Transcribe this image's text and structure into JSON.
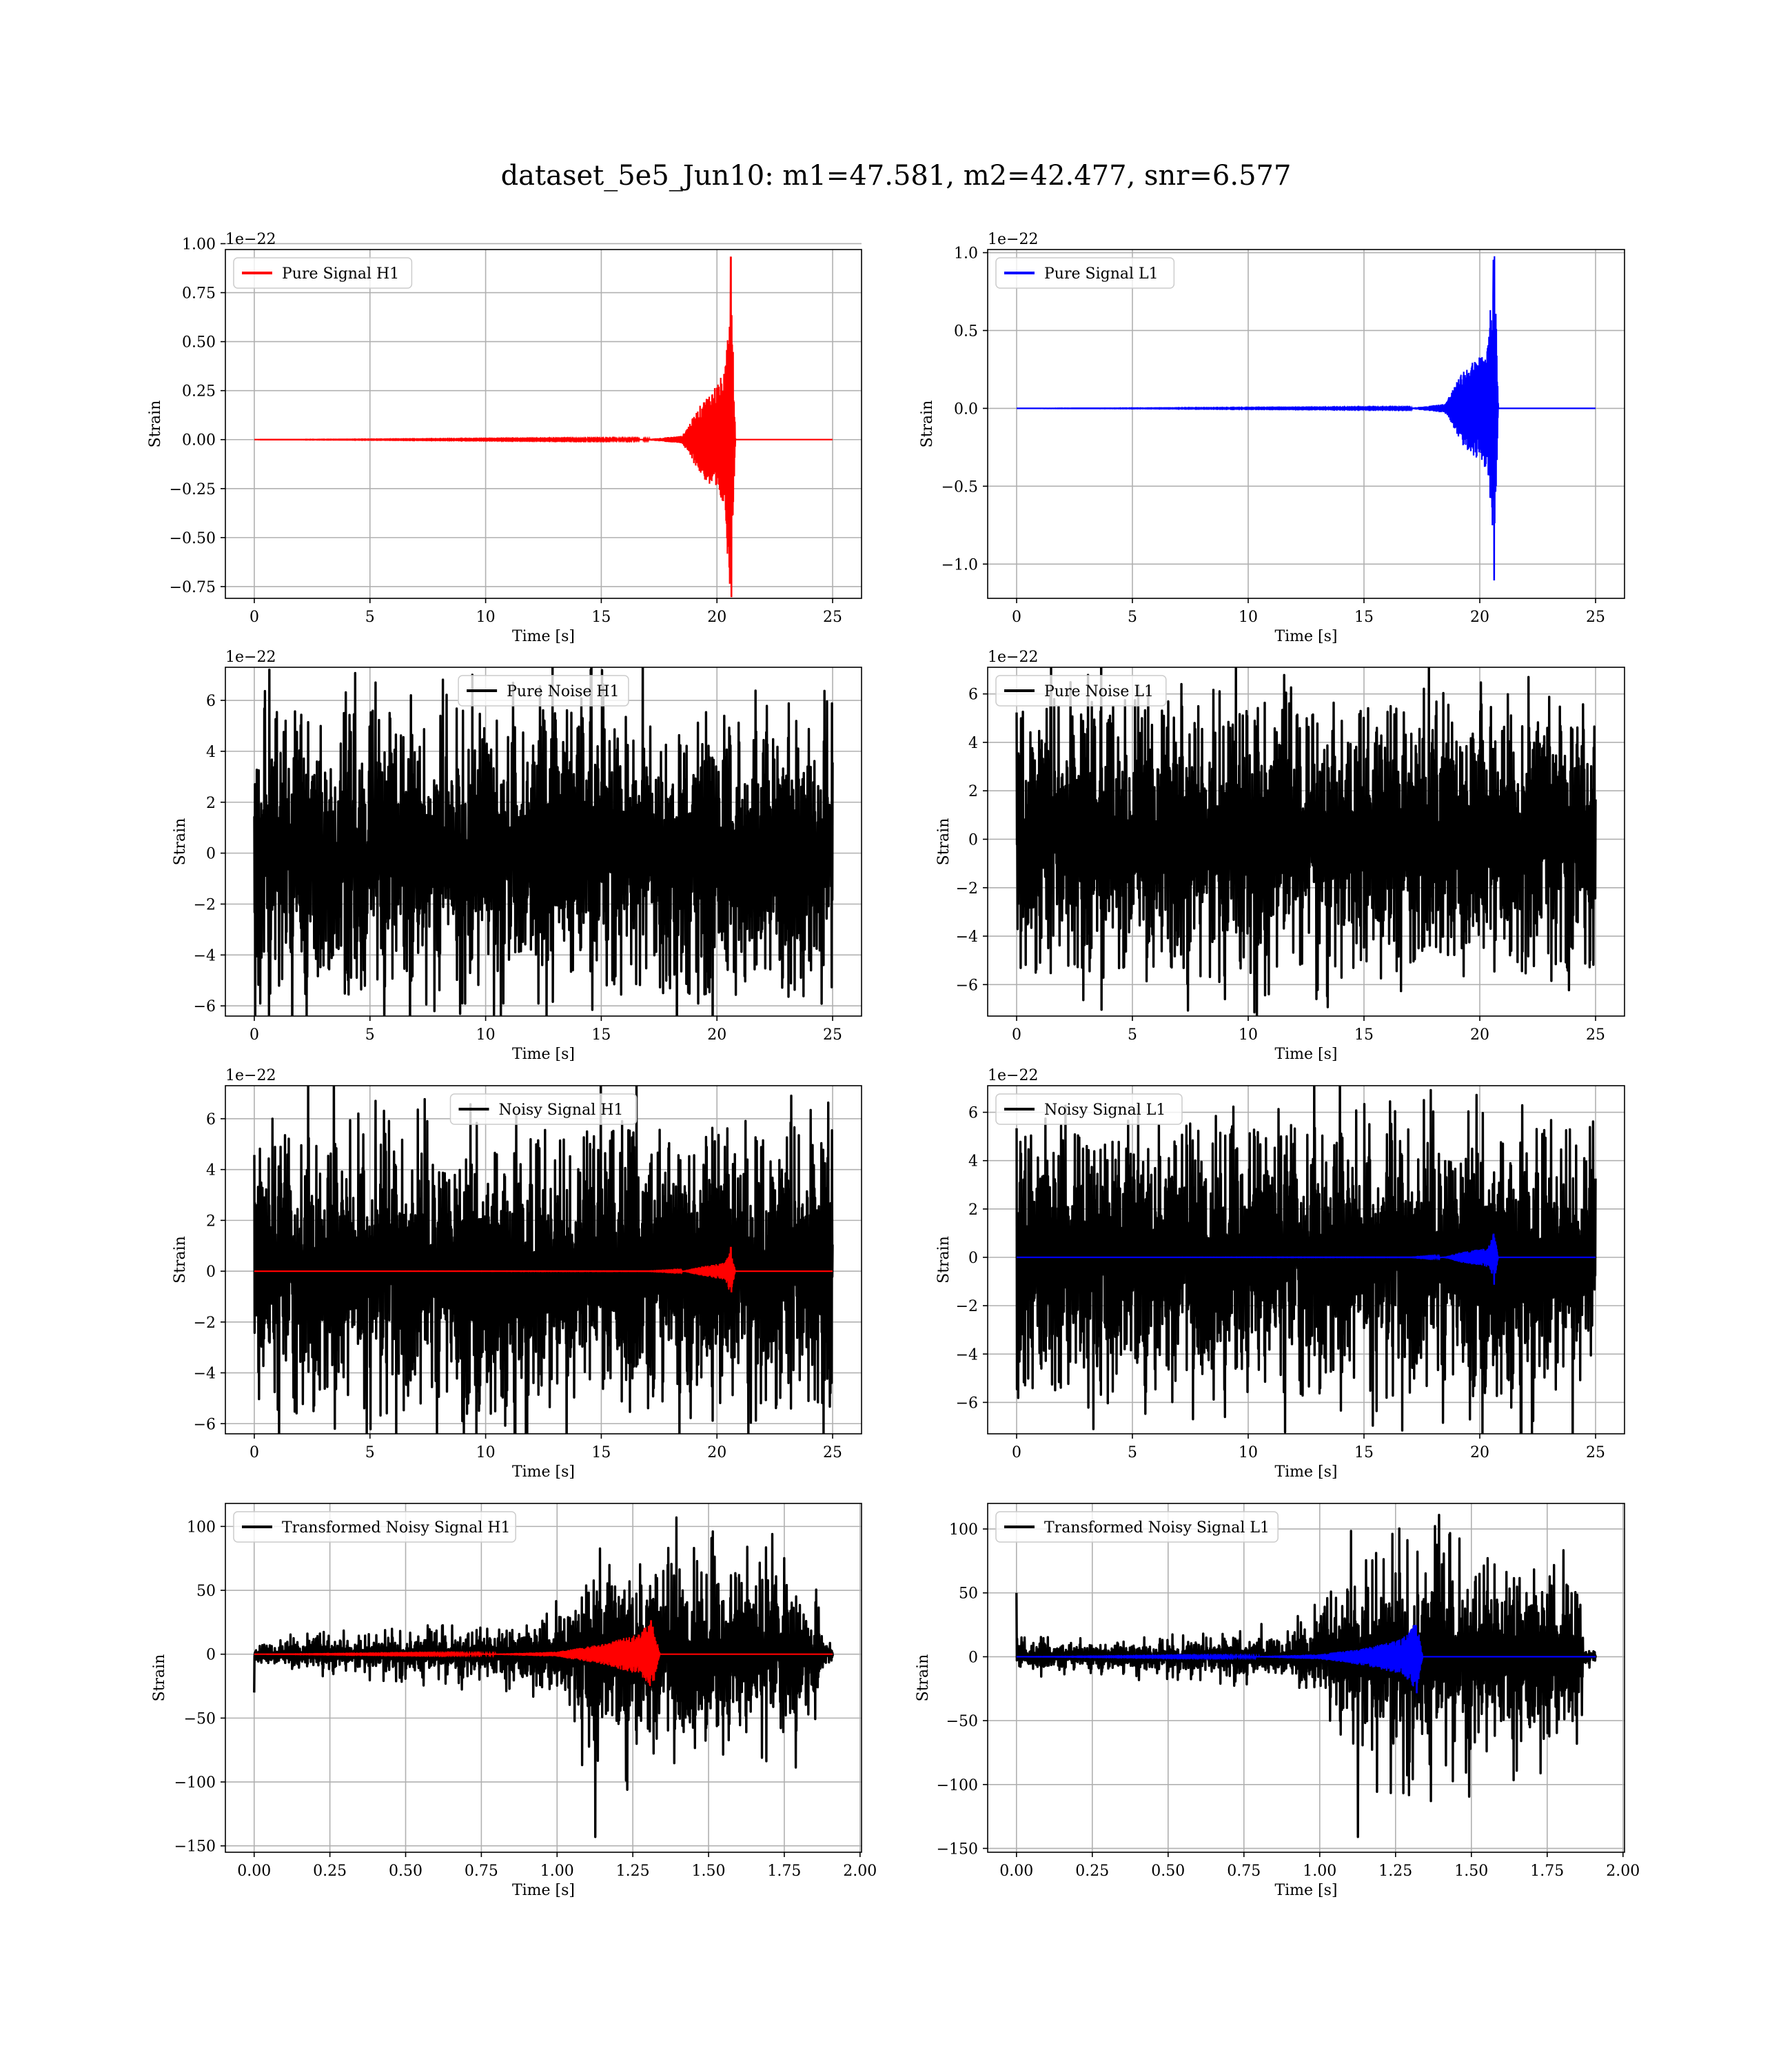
{
  "figure": {
    "title": "dataset_5e5_Jun10: m1=47.581, m2=42.477, snr=6.577"
  },
  "colors": {
    "h1_signal": "#ff0000",
    "l1_signal": "#0000ff",
    "noise": "#000000",
    "grid": "#b0b0b0"
  },
  "chart_data": [
    {
      "id": "pure-signal-h1",
      "type": "line",
      "legend": [
        "Pure Signal H1"
      ],
      "legend_loc": "upper-left",
      "xlabel": "Time [s]",
      "ylabel": "Strain",
      "offset_text": "1e−22",
      "xlim": [
        -1.25,
        26.25
      ],
      "ylim": [
        -0.81,
        0.97
      ],
      "xticks": [
        0,
        5,
        10,
        15,
        20,
        25
      ],
      "xtick_labels": [
        "0",
        "5",
        "10",
        "15",
        "20",
        "25"
      ],
      "yticks": [
        -0.75,
        -0.5,
        -0.25,
        0,
        0.25,
        0.5,
        0.75,
        1.0
      ],
      "ytick_labels": [
        "−0.75",
        "−0.50",
        "−0.25",
        "0.00",
        "0.25",
        "0.50",
        "0.75",
        "1.00"
      ],
      "grid": true,
      "series": [
        {
          "name": "Pure Signal H1",
          "kind": "chirp",
          "color": "red",
          "x_range": [
            0,
            25
          ],
          "envelope_points": [
            [
              0,
              0
            ],
            [
              17,
              0.003
            ],
            [
              18.5,
              0.02
            ],
            [
              19.3,
              0.18
            ],
            [
              20.0,
              0.29
            ],
            [
              20.35,
              0.35
            ],
            [
              20.6,
              0.93
            ],
            [
              20.62,
              -0.8
            ],
            [
              20.8,
              0
            ]
          ]
        }
      ]
    },
    {
      "id": "pure-signal-l1",
      "type": "line",
      "legend": [
        "Pure Signal L1"
      ],
      "legend_loc": "upper-left",
      "xlabel": "Time [s]",
      "ylabel": "Strain",
      "offset_text": "1e−22",
      "xlim": [
        -1.25,
        26.25
      ],
      "ylim": [
        -1.22,
        1.02
      ],
      "xticks": [
        0,
        5,
        10,
        15,
        20,
        25
      ],
      "xtick_labels": [
        "0",
        "5",
        "10",
        "15",
        "20",
        "25"
      ],
      "yticks": [
        -1.0,
        -0.5,
        0,
        0.5,
        1.0
      ],
      "ytick_labels": [
        "−1.0",
        "−0.5",
        "0.0",
        "0.5",
        "1.0"
      ],
      "grid": true,
      "series": [
        {
          "name": "Pure Signal L1",
          "kind": "chirp",
          "color": "blue",
          "x_range": [
            0,
            25
          ],
          "envelope_points": [
            [
              0,
              0
            ],
            [
              17,
              0.003
            ],
            [
              18.5,
              0.03
            ],
            [
              19.3,
              0.25
            ],
            [
              20.0,
              0.34
            ],
            [
              20.35,
              0.4
            ],
            [
              20.6,
              0.95
            ],
            [
              20.62,
              -1.1
            ],
            [
              20.8,
              0
            ]
          ]
        }
      ]
    },
    {
      "id": "pure-noise-h1",
      "type": "line",
      "legend": [
        "Pure Noise H1"
      ],
      "legend_loc": "upper-center",
      "xlabel": "Time [s]",
      "ylabel": "Strain",
      "offset_text": "1e−22",
      "xlim": [
        -1.25,
        26.25
      ],
      "ylim": [
        -6.4,
        7.3
      ],
      "xticks": [
        0,
        5,
        10,
        15,
        20,
        25
      ],
      "xtick_labels": [
        "0",
        "5",
        "10",
        "15",
        "20",
        "25"
      ],
      "yticks": [
        -6,
        -4,
        -2,
        0,
        2,
        4,
        6
      ],
      "ytick_labels": [
        "−6",
        "−4",
        "−2",
        "0",
        "2",
        "4",
        "6"
      ],
      "grid": true,
      "series": [
        {
          "name": "Pure Noise H1",
          "kind": "noise",
          "color": "black",
          "x_range": [
            0,
            25
          ],
          "band": [
            -4.3,
            4.5
          ],
          "max": 6.7,
          "min": -5.9
        }
      ]
    },
    {
      "id": "pure-noise-l1",
      "type": "line",
      "legend": [
        "Pure Noise L1"
      ],
      "legend_loc": "upper-left",
      "xlabel": "Time [s]",
      "ylabel": "Strain",
      "offset_text": "1e−22",
      "xlim": [
        -1.25,
        26.25
      ],
      "ylim": [
        -7.3,
        7.1
      ],
      "xticks": [
        0,
        5,
        10,
        15,
        20,
        25
      ],
      "xtick_labels": [
        "0",
        "5",
        "10",
        "15",
        "20",
        "25"
      ],
      "yticks": [
        -6,
        -4,
        -2,
        0,
        2,
        4,
        6
      ],
      "ytick_labels": [
        "−6",
        "−4",
        "−2",
        "0",
        "2",
        "4",
        "6"
      ],
      "grid": true,
      "series": [
        {
          "name": "Pure Noise L1",
          "kind": "noise",
          "color": "black",
          "x_range": [
            0,
            25
          ],
          "band": [
            -4.5,
            4.6
          ],
          "max": 6.3,
          "min": -6.6
        }
      ]
    },
    {
      "id": "noisy-signal-h1",
      "type": "line",
      "legend": [
        "Noisy Signal H1"
      ],
      "legend_loc": "upper-center",
      "xlabel": "Time [s]",
      "ylabel": "Strain",
      "offset_text": "1e−22",
      "xlim": [
        -1.25,
        26.25
      ],
      "ylim": [
        -6.4,
        7.3
      ],
      "xticks": [
        0,
        5,
        10,
        15,
        20,
        25
      ],
      "xtick_labels": [
        "0",
        "5",
        "10",
        "15",
        "20",
        "25"
      ],
      "yticks": [
        -6,
        -4,
        -2,
        0,
        2,
        4,
        6
      ],
      "ytick_labels": [
        "−6",
        "−4",
        "−2",
        "0",
        "2",
        "4",
        "6"
      ],
      "grid": true,
      "series": [
        {
          "name": "Noisy Signal H1",
          "kind": "noise",
          "color": "black",
          "x_range": [
            0,
            25
          ],
          "band": [
            -4.3,
            4.5
          ],
          "max": 6.7,
          "min": -5.9
        },
        {
          "kind": "chirp",
          "color": "red",
          "x_range": [
            0,
            25
          ],
          "envelope_points": [
            [
              0,
              0
            ],
            [
              17,
              0.003
            ],
            [
              18.5,
              0.02
            ],
            [
              19.3,
              0.18
            ],
            [
              20.0,
              0.29
            ],
            [
              20.35,
              0.35
            ],
            [
              20.6,
              0.93
            ],
            [
              20.62,
              -0.8
            ],
            [
              20.8,
              0
            ]
          ]
        }
      ]
    },
    {
      "id": "noisy-signal-l1",
      "type": "line",
      "legend": [
        "Noisy Signal L1"
      ],
      "legend_loc": "upper-left",
      "xlabel": "Time [s]",
      "ylabel": "Strain",
      "offset_text": "1e−22",
      "xlim": [
        -1.25,
        26.25
      ],
      "ylim": [
        -7.3,
        7.1
      ],
      "xticks": [
        0,
        5,
        10,
        15,
        20,
        25
      ],
      "xtick_labels": [
        "0",
        "5",
        "10",
        "15",
        "20",
        "25"
      ],
      "yticks": [
        -6,
        -4,
        -2,
        0,
        2,
        4,
        6
      ],
      "ytick_labels": [
        "−6",
        "−4",
        "−2",
        "0",
        "2",
        "4",
        "6"
      ],
      "grid": true,
      "series": [
        {
          "name": "Noisy Signal L1",
          "kind": "noise",
          "color": "black",
          "x_range": [
            0,
            25
          ],
          "band": [
            -4.5,
            4.6
          ],
          "max": 6.3,
          "min": -6.6
        },
        {
          "kind": "chirp",
          "color": "blue",
          "x_range": [
            0,
            25
          ],
          "envelope_points": [
            [
              0,
              0
            ],
            [
              17,
              0.003
            ],
            [
              18.5,
              0.03
            ],
            [
              19.3,
              0.25
            ],
            [
              20.0,
              0.34
            ],
            [
              20.35,
              0.4
            ],
            [
              20.6,
              0.95
            ],
            [
              20.62,
              -1.1
            ],
            [
              20.8,
              0
            ]
          ]
        }
      ]
    },
    {
      "id": "transformed-noisy-signal-h1",
      "type": "line",
      "legend": [
        "Transformed Noisy Signal H1"
      ],
      "legend_loc": "upper-left",
      "xlabel": "Time [s]",
      "ylabel": "Strain",
      "xlim": [
        -0.095,
        2.005
      ],
      "ylim": [
        -155,
        118
      ],
      "xticks": [
        0,
        0.25,
        0.5,
        0.75,
        1.0,
        1.25,
        1.5,
        1.75,
        2.0
      ],
      "xtick_labels": [
        "0.00",
        "0.25",
        "0.50",
        "0.75",
        "1.00",
        "1.25",
        "1.50",
        "1.75",
        "2.00"
      ],
      "yticks": [
        -150,
        -100,
        -50,
        0,
        50,
        100
      ],
      "ytick_labels": [
        "−150",
        "−100",
        "−50",
        "0",
        "50",
        "100"
      ],
      "grid": true,
      "series": [
        {
          "name": "Transformed Noisy Signal H1",
          "kind": "noise-growing",
          "color": "black",
          "x_range": [
            0,
            1.91
          ],
          "envelope_points": [
            [
              0,
              8
            ],
            [
              0.5,
              12
            ],
            [
              0.9,
              18
            ],
            [
              1.05,
              30
            ],
            [
              1.1,
              55
            ],
            [
              1.3,
              60
            ],
            [
              1.6,
              55
            ],
            [
              1.86,
              50
            ],
            [
              1.87,
              8
            ],
            [
              1.91,
              5
            ]
          ],
          "max": 107,
          "min": -143
        },
        {
          "kind": "chirp",
          "color": "red",
          "x_range": [
            0,
            1.91
          ],
          "envelope_points": [
            [
              0,
              0
            ],
            [
              0.8,
              0.5
            ],
            [
              1.0,
              2
            ],
            [
              1.15,
              8
            ],
            [
              1.27,
              16
            ],
            [
              1.31,
              26
            ],
            [
              1.32,
              -20
            ],
            [
              1.34,
              0
            ]
          ]
        }
      ]
    },
    {
      "id": "transformed-noisy-signal-l1",
      "type": "line",
      "legend": [
        "Transformed Noisy Signal L1"
      ],
      "legend_loc": "upper-left",
      "xlabel": "Time [s]",
      "ylabel": "Strain",
      "xlim": [
        -0.095,
        2.005
      ],
      "ylim": [
        -153,
        120
      ],
      "xticks": [
        0,
        0.25,
        0.5,
        0.75,
        1.0,
        1.25,
        1.5,
        1.75,
        2.0
      ],
      "xtick_labels": [
        "0.00",
        "0.25",
        "0.50",
        "0.75",
        "1.00",
        "1.25",
        "1.50",
        "1.75",
        "2.00"
      ],
      "yticks": [
        -150,
        -100,
        -50,
        0,
        50,
        100
      ],
      "ytick_labels": [
        "−150",
        "−100",
        "−50",
        "0",
        "50",
        "100"
      ],
      "grid": true,
      "series": [
        {
          "name": "Transformed Noisy Signal L1",
          "kind": "noise-growing",
          "color": "black",
          "x_range": [
            0,
            1.91
          ],
          "envelope_points": [
            [
              0,
              8
            ],
            [
              0.5,
              10
            ],
            [
              0.9,
              16
            ],
            [
              1.05,
              30
            ],
            [
              1.1,
              55
            ],
            [
              1.3,
              60
            ],
            [
              1.6,
              58
            ],
            [
              1.86,
              50
            ],
            [
              1.87,
              5
            ],
            [
              1.91,
              4
            ]
          ],
          "max": 111,
          "min": -141,
          "spike_start": 50
        },
        {
          "kind": "chirp",
          "color": "blue",
          "x_range": [
            0,
            1.91
          ],
          "envelope_points": [
            [
              0,
              0
            ],
            [
              0.8,
              0.5
            ],
            [
              1.0,
              2
            ],
            [
              1.15,
              7
            ],
            [
              1.27,
              14
            ],
            [
              1.31,
              24
            ],
            [
              1.32,
              -28
            ],
            [
              1.34,
              0
            ]
          ]
        }
      ]
    }
  ]
}
